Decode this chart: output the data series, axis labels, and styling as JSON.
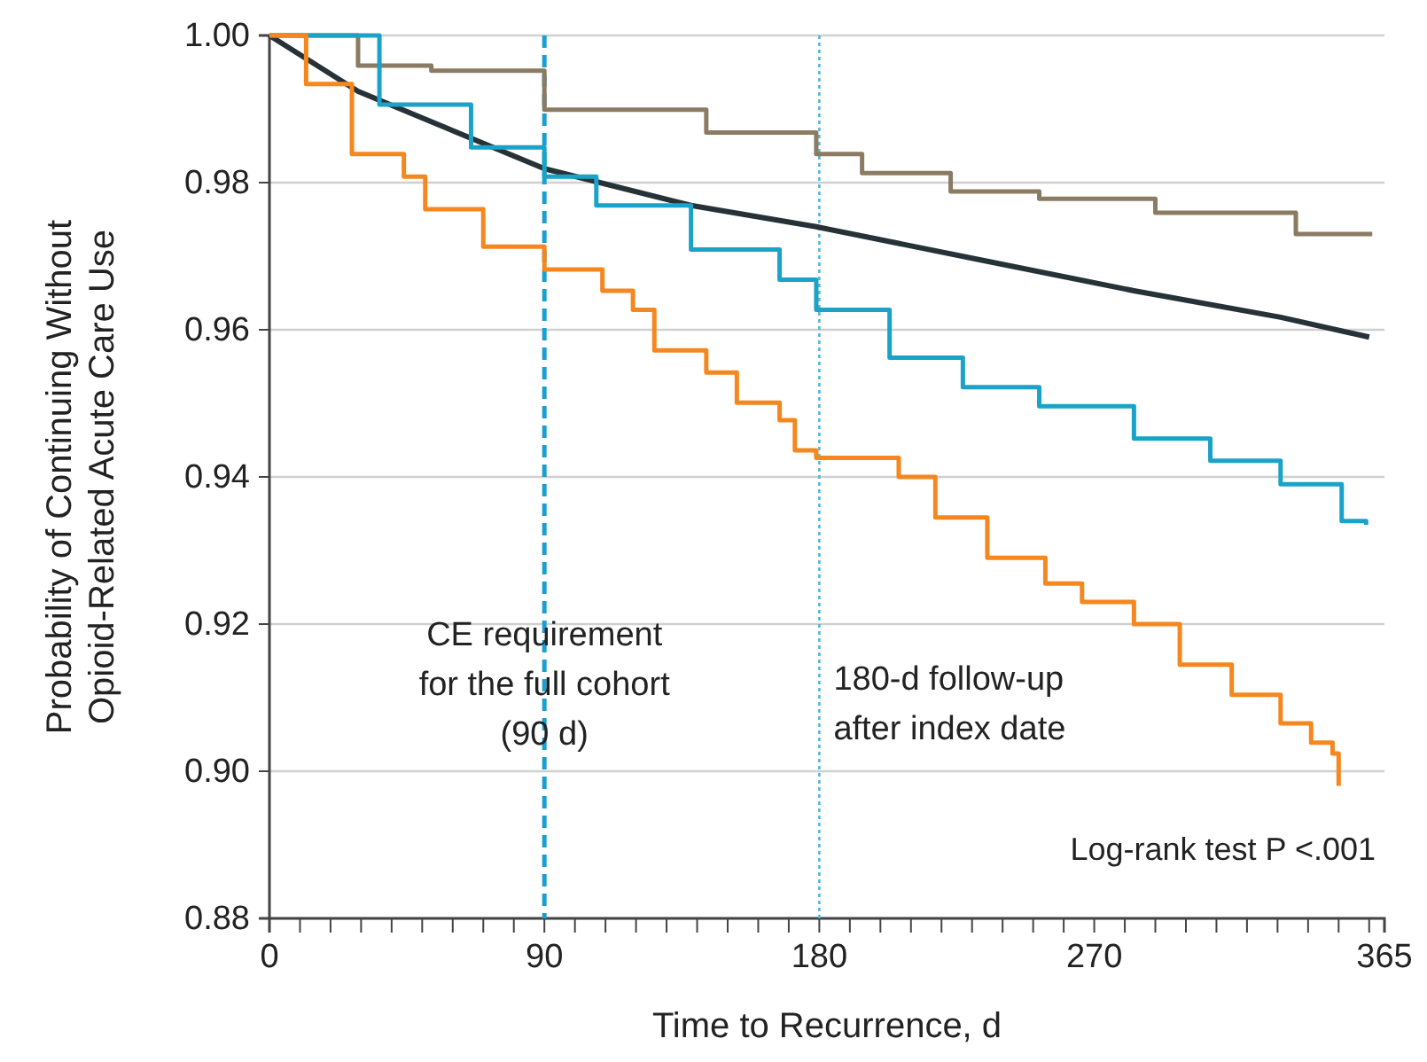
{
  "chart_data": {
    "type": "step",
    "xlabel": "Time to Recurrence, d",
    "ylabel": "Probability of Continuing Without Opioid-Related Acute Care Use",
    "xlim": [
      0,
      365
    ],
    "ylim": [
      0.88,
      1.0
    ],
    "xticks": [
      0,
      {
        "value": 10,
        "label": null
      },
      {
        "value": 20,
        "label": null
      },
      {
        "value": 30,
        "label": null
      },
      {
        "value": 40,
        "label": null
      },
      {
        "value": 50,
        "label": null
      },
      {
        "value": 60,
        "label": null
      },
      {
        "value": 70,
        "label": null
      },
      {
        "value": 80,
        "label": null
      },
      90,
      {
        "value": 100,
        "label": null
      },
      {
        "value": 110,
        "label": null
      },
      {
        "value": 120,
        "label": null
      },
      {
        "value": 130,
        "label": null
      },
      {
        "value": 140,
        "label": null
      },
      {
        "value": 150,
        "label": null
      },
      {
        "value": 160,
        "label": null
      },
      {
        "value": 170,
        "label": null
      },
      180,
      {
        "value": 190,
        "label": null
      },
      {
        "value": 200,
        "label": null
      },
      {
        "value": 210,
        "label": null
      },
      {
        "value": 220,
        "label": null
      },
      {
        "value": 230,
        "label": null
      },
      {
        "value": 240,
        "label": null
      },
      {
        "value": 250,
        "label": null
      },
      {
        "value": 260,
        "label": null
      },
      270,
      {
        "value": 280,
        "label": null
      },
      {
        "value": 290,
        "label": null
      },
      {
        "value": 300,
        "label": null
      },
      {
        "value": 310,
        "label": null
      },
      {
        "value": 320,
        "label": null
      },
      {
        "value": 330,
        "label": null
      },
      {
        "value": 340,
        "label": null
      },
      {
        "value": 350,
        "label": null
      },
      {
        "value": 360,
        "label": null
      },
      365
    ],
    "yticks": [
      {
        "value": 0.88,
        "label": "0.88"
      },
      {
        "value": 0.9,
        "label": "0.90"
      },
      {
        "value": 0.92,
        "label": "0.92"
      },
      {
        "value": 0.94,
        "label": "0.94"
      },
      {
        "value": 0.96,
        "label": "0.96"
      },
      {
        "value": 0.98,
        "label": "0.98"
      },
      {
        "value": 1.0,
        "label": "1.00"
      }
    ],
    "grid": "y",
    "line_style": "solid",
    "marker": "none",
    "series": [
      {
        "color": "#8b7b63",
        "x": [
          0,
          29,
          53,
          90,
          143,
          179,
          194,
          223,
          252,
          290,
          336,
          361
        ],
        "values": [
          1.0,
          0.9959,
          0.9952,
          0.9899,
          0.9868,
          0.9839,
          0.9813,
          0.9788,
          0.9778,
          0.9759,
          0.973,
          0.973
        ]
      },
      {
        "color": "#263238",
        "type": "line",
        "x": [
          0,
          29,
          90,
          138,
          179,
          235,
          283,
          331,
          360
        ],
        "values": [
          1.0,
          0.9924,
          0.9819,
          0.9769,
          0.974,
          0.9693,
          0.9653,
          0.9617,
          0.959
        ]
      },
      {
        "color": "#1aa3c8",
        "x": [
          0,
          36,
          66,
          90,
          107,
          138,
          167,
          179,
          203,
          227,
          252,
          283,
          308,
          331,
          351,
          359
        ],
        "values": [
          1.0,
          0.9906,
          0.9848,
          0.9808,
          0.9769,
          0.9709,
          0.9668,
          0.9627,
          0.9562,
          0.9522,
          0.9496,
          0.9452,
          0.9422,
          0.939,
          0.934,
          0.9335
        ]
      },
      {
        "color": "#f5871f",
        "x": [
          0,
          12,
          27,
          44,
          51,
          70,
          90,
          109,
          119,
          126,
          143,
          153,
          167,
          172,
          179,
          206,
          218,
          235,
          254,
          266,
          283,
          298,
          315,
          331,
          341,
          348,
          350
        ],
        "values": [
          1.0,
          0.9934,
          0.9839,
          0.9808,
          0.9764,
          0.9713,
          0.9682,
          0.9653,
          0.9627,
          0.9572,
          0.9542,
          0.9501,
          0.9477,
          0.9436,
          0.9426,
          0.94,
          0.9345,
          0.929,
          0.9255,
          0.923,
          0.92,
          0.9145,
          0.9104,
          0.9065,
          0.9039,
          0.9024,
          0.898
        ]
      }
    ],
    "ref_lines": [
      {
        "axis": "x",
        "value": 90,
        "label": "CE requirement\nfor the full cohort\n(90 d)",
        "color": "#1a9fd0",
        "line_style": "dashed"
      },
      {
        "axis": "x",
        "value": 180,
        "label": "180-d follow-up\nafter index date",
        "color": "#4fb8d8",
        "line_style": "dotted"
      }
    ],
    "annotations": [
      "Log-rank test P <.001"
    ]
  }
}
